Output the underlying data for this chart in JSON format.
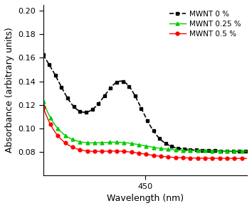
{
  "title": "",
  "xlabel": "Wavelength (nm)",
  "ylabel": "Absorbance (arbitrary units)",
  "xlim": [
    390,
    510
  ],
  "ylim": [
    0.06,
    0.205
  ],
  "yticks": [
    0.08,
    0.1,
    0.12,
    0.14,
    0.16,
    0.18,
    0.2
  ],
  "xticks": [
    450
  ],
  "legend": [
    {
      "label": "MWNT 0 %",
      "color": "#000000",
      "marker": "s",
      "linestyle": "--"
    },
    {
      "label": "MWNT 0.25 %",
      "color": "#00cc00",
      "marker": "^",
      "linestyle": "-"
    },
    {
      "label": "MWNT 0.5 %",
      "color": "#ff0000",
      "marker": "o",
      "linestyle": "-"
    }
  ],
  "background_color": "#ffffff"
}
